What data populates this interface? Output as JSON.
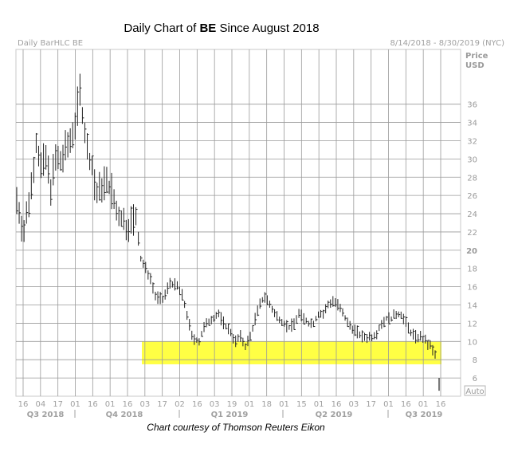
{
  "title": {
    "prefix": "Daily Chart of ",
    "ticker": "BE",
    "suffix": " Since August 2018"
  },
  "header": {
    "left": "Daily BarHLC BE",
    "right": "8/14/2018 - 8/30/2019 (NYC)"
  },
  "footer": "Chart courtesy of Thomson Reuters Eikon",
  "auto_label": "Auto",
  "chart_data": {
    "type": "bar",
    "subtype": "ohlc-hlc",
    "ticker": "BE",
    "title": "Daily Chart of BE Since August 2018",
    "ylabel": "Price USD",
    "ylim": [
      4,
      42
    ],
    "y_ticks": [
      6,
      8,
      10,
      12,
      14,
      16,
      18,
      20,
      22,
      24,
      26,
      28,
      30,
      32,
      34,
      36
    ],
    "y_axis_title": [
      "Price",
      "USD"
    ],
    "x_ticks": [
      "16",
      "04",
      "17",
      "01",
      "16",
      "01",
      "16",
      "03",
      "17",
      "02",
      "16",
      "03",
      "19",
      "01",
      "18",
      "01",
      "15",
      "01",
      "16",
      "03",
      "17",
      "01",
      "16",
      "01",
      "16"
    ],
    "quarters": [
      "Q3 2018",
      "Q4 2018",
      "Q1 2019",
      "Q2 2019",
      "Q3 2019"
    ],
    "highlight_zone": {
      "low": 7.5,
      "high": 10,
      "color": "#ffff44"
    },
    "approx_path": [
      [
        0,
        25.5
      ],
      [
        2,
        23
      ],
      [
        3,
        22
      ],
      [
        6,
        27
      ],
      [
        8,
        32
      ],
      [
        10,
        29
      ],
      [
        12,
        30
      ],
      [
        14,
        27
      ],
      [
        16,
        30
      ],
      [
        18,
        29.5
      ],
      [
        20,
        31
      ],
      [
        22,
        32
      ],
      [
        24,
        34
      ],
      [
        26,
        37.5
      ],
      [
        27,
        35
      ],
      [
        29,
        31
      ],
      [
        31,
        29
      ],
      [
        33,
        26
      ],
      [
        36,
        27.5
      ],
      [
        39,
        26.5
      ],
      [
        41,
        24
      ],
      [
        43,
        23.5
      ],
      [
        45,
        22.5
      ],
      [
        47,
        23
      ],
      [
        49,
        23.5
      ],
      [
        51,
        19
      ],
      [
        53,
        18
      ],
      [
        55,
        17
      ],
      [
        57,
        15
      ],
      [
        60,
        14.5
      ],
      [
        63,
        16.5
      ],
      [
        66,
        16
      ],
      [
        68,
        15
      ],
      [
        70,
        13
      ],
      [
        72,
        10.5
      ],
      [
        75,
        10
      ],
      [
        77,
        11.5
      ],
      [
        80,
        12.5
      ],
      [
        83,
        13
      ],
      [
        85,
        12
      ],
      [
        88,
        11
      ],
      [
        90,
        10
      ],
      [
        92,
        10.5
      ],
      [
        94,
        9.5
      ],
      [
        96,
        10.5
      ],
      [
        98,
        12.5
      ],
      [
        100,
        14
      ],
      [
        102,
        15
      ],
      [
        104,
        14
      ],
      [
        106,
        13
      ],
      [
        108,
        12.5
      ],
      [
        110,
        12
      ],
      [
        112,
        11.5
      ],
      [
        114,
        12
      ],
      [
        116,
        13
      ],
      [
        118,
        12.5
      ],
      [
        120,
        12
      ],
      [
        122,
        12
      ],
      [
        124,
        13
      ],
      [
        126,
        13
      ],
      [
        128,
        14
      ],
      [
        130,
        14.5
      ],
      [
        132,
        14
      ],
      [
        134,
        13
      ],
      [
        136,
        12
      ],
      [
        138,
        11.5
      ],
      [
        140,
        11
      ],
      [
        142,
        10.5
      ],
      [
        144,
        10.5
      ],
      [
        146,
        10.5
      ],
      [
        148,
        11
      ],
      [
        150,
        12
      ],
      [
        152,
        12.5
      ],
      [
        154,
        12.5
      ],
      [
        156,
        13
      ],
      [
        158,
        13
      ],
      [
        160,
        12
      ],
      [
        162,
        11
      ],
      [
        164,
        10.5
      ],
      [
        166,
        10.5
      ],
      [
        168,
        10
      ],
      [
        170,
        9.5
      ],
      [
        172,
        8.5
      ]
    ],
    "final_bar": {
      "high": 6,
      "low": 4.6
    }
  }
}
